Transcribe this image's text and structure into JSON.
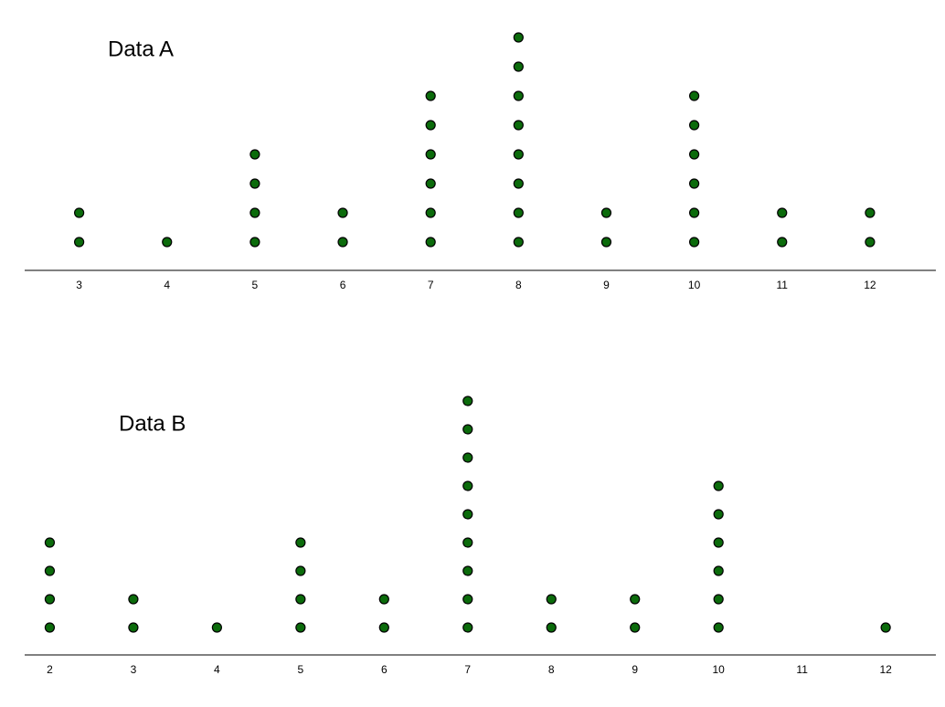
{
  "chart_data": [
    {
      "type": "dot",
      "title": "Data A",
      "color": "#0b6b0b",
      "x": [
        3,
        4,
        5,
        6,
        7,
        8,
        9,
        10,
        11,
        12
      ],
      "values": [
        2,
        1,
        4,
        2,
        6,
        8,
        2,
        6,
        2,
        2
      ],
      "xlim": [
        2.38,
        12.75
      ],
      "xticks": [
        3,
        4,
        5,
        6,
        7,
        8,
        9,
        10,
        11,
        12
      ]
    },
    {
      "type": "dot",
      "title": "Data B",
      "color": "#0b6b0b",
      "x": [
        2,
        3,
        4,
        5,
        6,
        7,
        8,
        9,
        10,
        11,
        12
      ],
      "values": [
        4,
        2,
        1,
        4,
        2,
        9,
        2,
        2,
        6,
        0,
        1
      ],
      "xlim": [
        1.7,
        12.6
      ],
      "xticks": [
        2,
        3,
        4,
        5,
        6,
        7,
        8,
        9,
        10,
        11,
        12
      ]
    }
  ]
}
